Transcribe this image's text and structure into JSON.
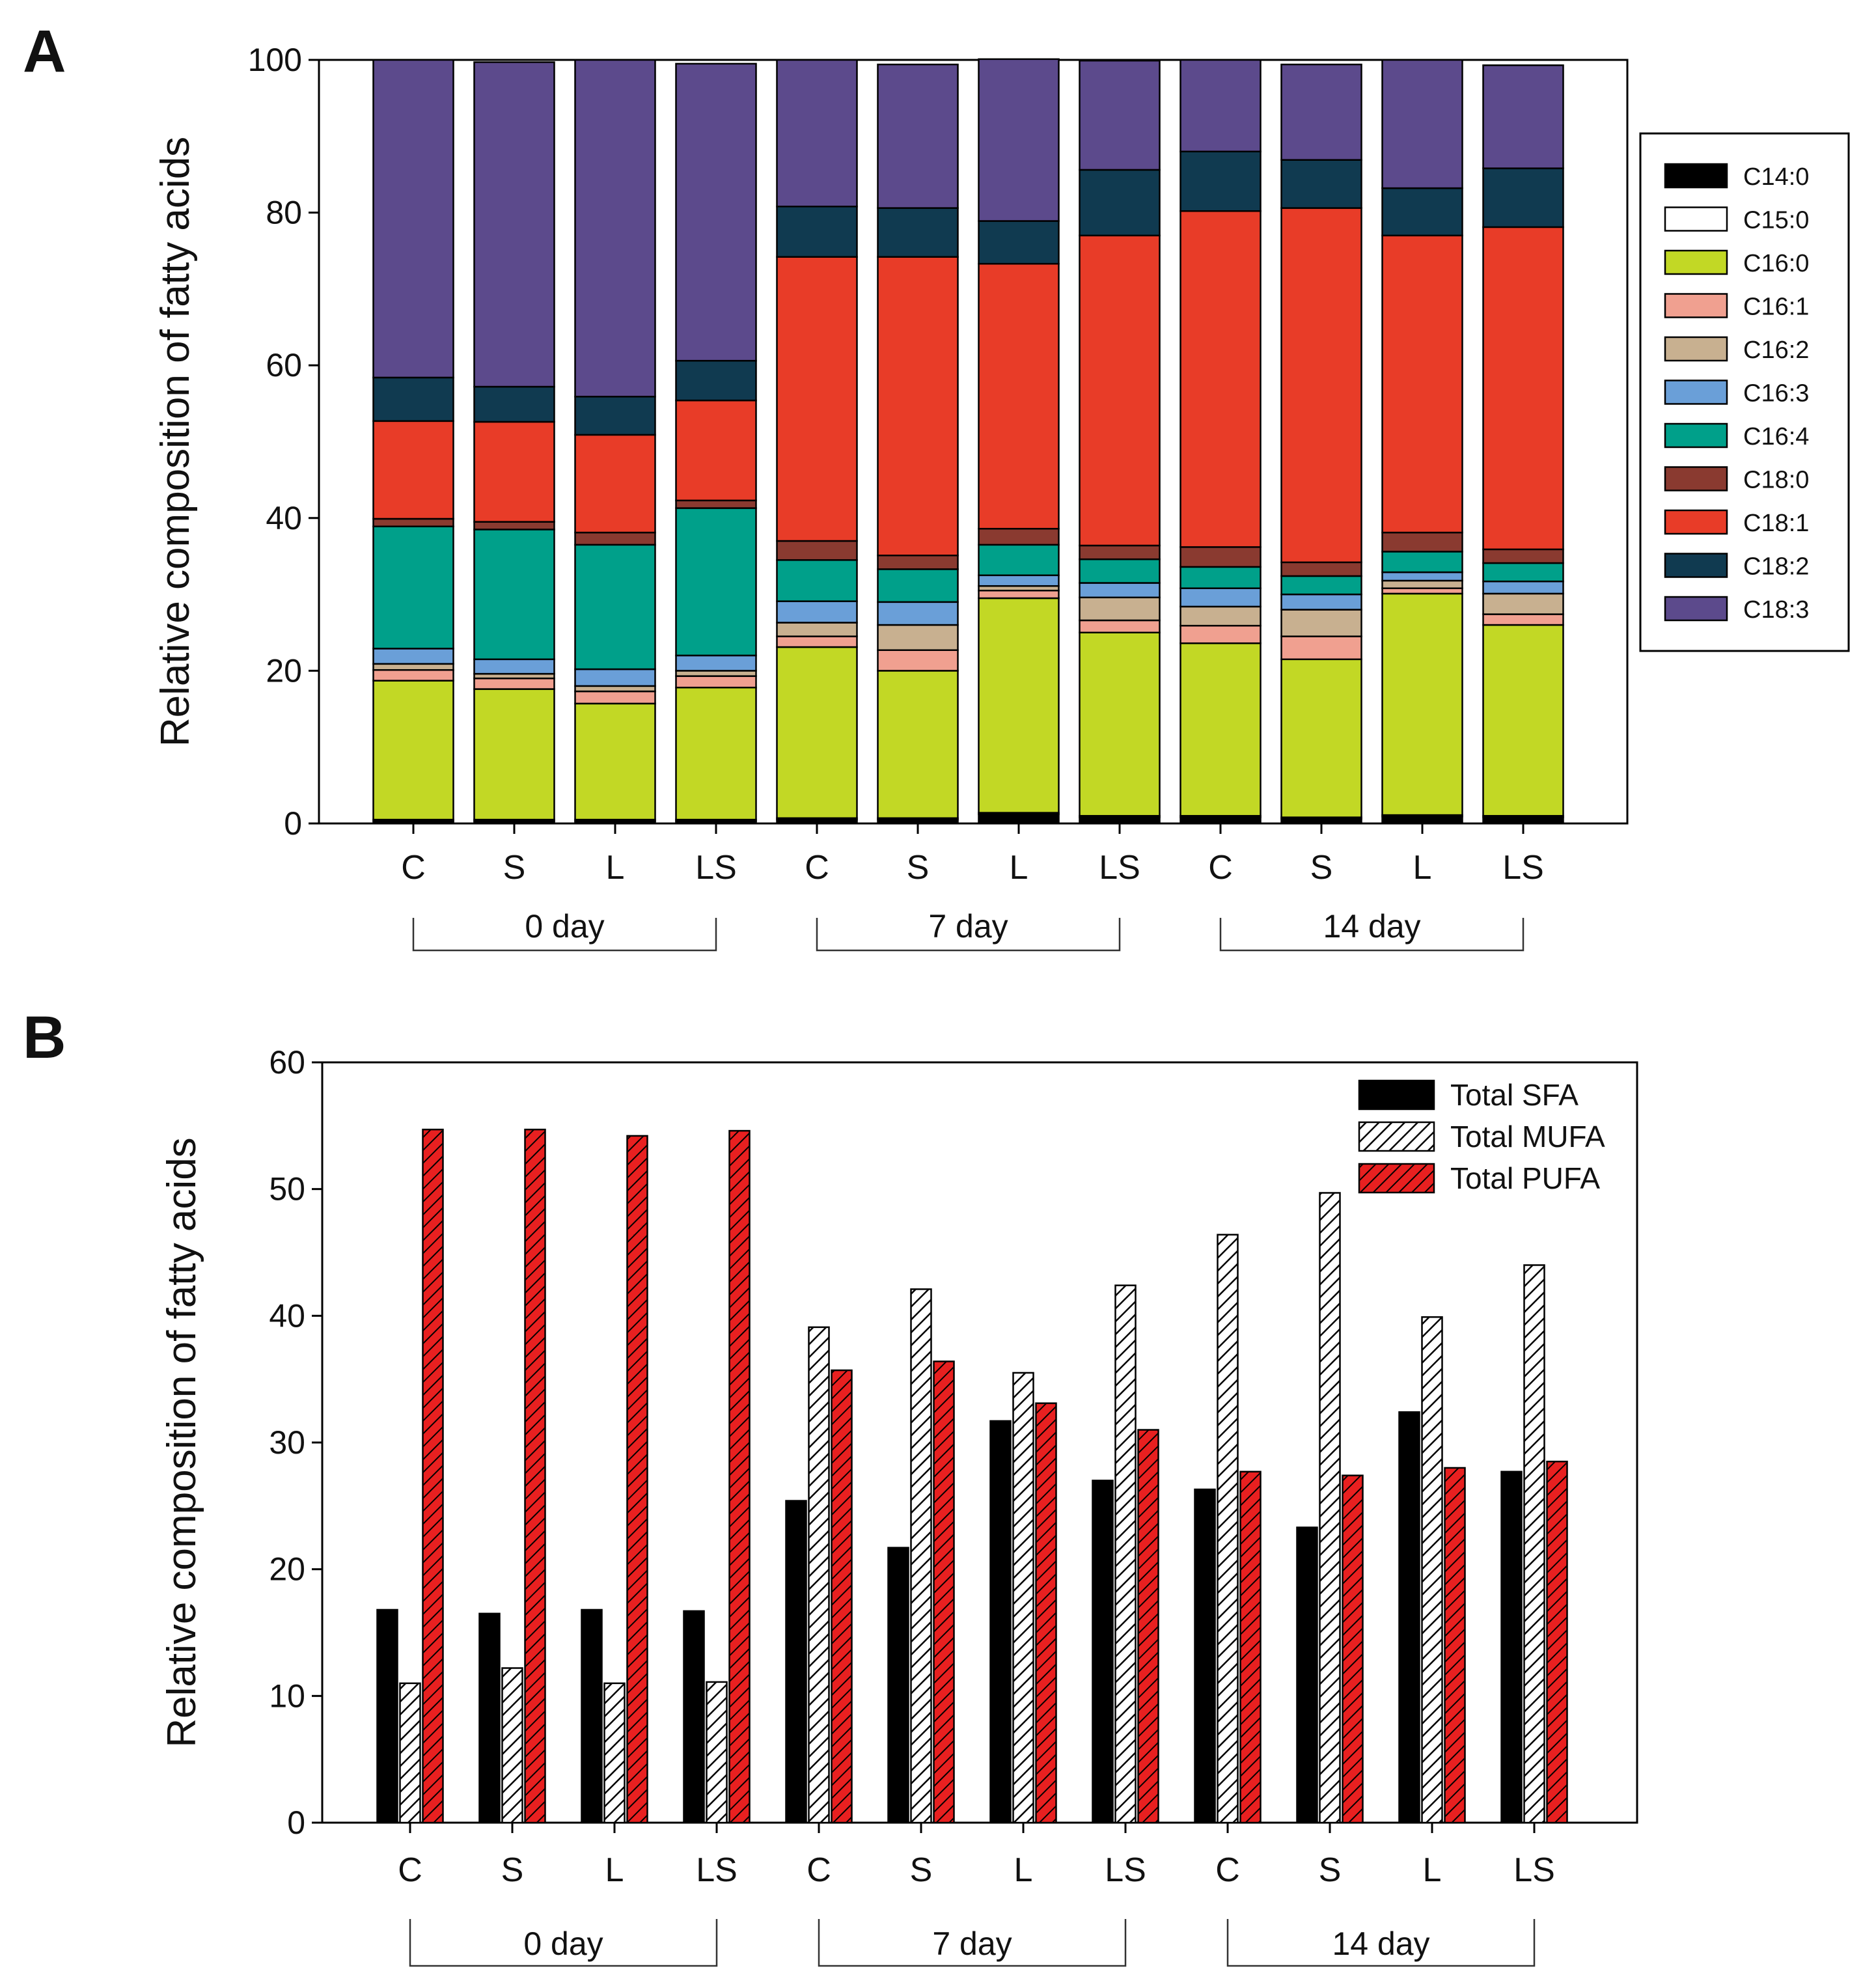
{
  "figure": {
    "panel_a_label": "A",
    "panel_b_label": "B"
  },
  "chart_data": [
    {
      "type": "stacked-bar",
      "panel": "A",
      "ylabel": "Relative composition of fatty acids",
      "ylim": [
        0,
        100
      ],
      "yticks": [
        0,
        20,
        40,
        60,
        80,
        100
      ],
      "categories": [
        "C",
        "S",
        "L",
        "LS",
        "C",
        "S",
        "L",
        "LS",
        "C",
        "S",
        "L",
        "LS"
      ],
      "groups": [
        {
          "label": "0 day",
          "start": 0,
          "end": 3
        },
        {
          "label": "7 day",
          "start": 4,
          "end": 7
        },
        {
          "label": "14 day",
          "start": 8,
          "end": 11
        }
      ],
      "legend_position": "right",
      "series": [
        {
          "name": "C14:0",
          "color": "#000000",
          "values": [
            0.3,
            0.3,
            0.3,
            0.3,
            0.5,
            0.5,
            1.2,
            0.8,
            0.8,
            0.6,
            0.9,
            0.8
          ]
        },
        {
          "name": "C15:0",
          "color": "#ffffff",
          "values": [
            0.2,
            0.2,
            0.2,
            0.2,
            0.2,
            0.2,
            0.2,
            0.2,
            0.2,
            0.2,
            0.2,
            0.2
          ]
        },
        {
          "name": "C16:0",
          "color": "#c2d825",
          "values": [
            18.2,
            17.1,
            15.2,
            17.3,
            22.4,
            19.3,
            28.1,
            24.0,
            22.6,
            20.7,
            29.0,
            25.0
          ]
        },
        {
          "name": "C16:1",
          "color": "#f0a090",
          "values": [
            1.4,
            1.4,
            1.6,
            1.5,
            1.4,
            2.7,
            1.0,
            1.6,
            2.3,
            3.0,
            0.7,
            1.4
          ]
        },
        {
          "name": "C16:2",
          "color": "#c8b090",
          "values": [
            0.8,
            0.6,
            0.7,
            0.7,
            1.8,
            3.3,
            0.6,
            3.0,
            2.5,
            3.5,
            1.0,
            2.7
          ]
        },
        {
          "name": "C16:3",
          "color": "#6a9fd8",
          "values": [
            2.0,
            1.9,
            2.2,
            2.0,
            2.8,
            3.0,
            1.4,
            1.9,
            2.4,
            2.0,
            1.1,
            1.6
          ]
        },
        {
          "name": "C16:4",
          "color": "#00a08a",
          "values": [
            16.0,
            17.0,
            16.3,
            19.3,
            5.4,
            4.3,
            4.0,
            3.1,
            2.8,
            2.4,
            2.7,
            2.4
          ]
        },
        {
          "name": "C18:0",
          "color": "#8a3a30",
          "values": [
            1.0,
            1.0,
            1.6,
            1.0,
            2.5,
            1.8,
            2.1,
            1.8,
            2.6,
            1.8,
            2.5,
            1.8
          ]
        },
        {
          "name": "C18:1",
          "color": "#e83c28",
          "values": [
            12.8,
            13.1,
            12.8,
            13.1,
            37.2,
            39.1,
            34.7,
            40.6,
            44.0,
            46.4,
            38.9,
            42.2
          ]
        },
        {
          "name": "C18:2",
          "color": "#103a50",
          "values": [
            5.7,
            4.6,
            5.0,
            5.2,
            6.6,
            6.4,
            5.6,
            8.6,
            7.8,
            6.3,
            6.2,
            7.7
          ]
        },
        {
          "name": "C18:3",
          "color": "#5c4a8c",
          "values": [
            41.6,
            42.5,
            44.1,
            38.9,
            19.2,
            18.8,
            21.2,
            14.3,
            12.0,
            12.5,
            16.8,
            13.5
          ]
        }
      ]
    },
    {
      "type": "bar",
      "panel": "B",
      "ylabel": "Relative composition of fatty acids",
      "ylim": [
        0,
        60
      ],
      "yticks": [
        0,
        10,
        20,
        30,
        40,
        50,
        60
      ],
      "categories": [
        "C",
        "S",
        "L",
        "LS",
        "C",
        "S",
        "L",
        "LS",
        "C",
        "S",
        "L",
        "LS"
      ],
      "groups": [
        {
          "label": "0 day",
          "start": 0,
          "end": 3
        },
        {
          "label": "7 day",
          "start": 4,
          "end": 7
        },
        {
          "label": "14 day",
          "start": 8,
          "end": 11
        }
      ],
      "legend_position": "top-right",
      "series": [
        {
          "name": "Total SFA",
          "fill": "solid",
          "color": "#000000",
          "values": [
            16.8,
            16.5,
            16.8,
            16.7,
            25.4,
            21.7,
            31.7,
            27.0,
            26.3,
            23.3,
            32.4,
            27.7
          ]
        },
        {
          "name": "Total MUFA",
          "fill": "hatch",
          "color": "#000000",
          "values": [
            11.0,
            12.2,
            11.0,
            11.1,
            39.1,
            42.1,
            35.5,
            42.4,
            46.4,
            49.7,
            39.9,
            44.0
          ]
        },
        {
          "name": "Total PUFA",
          "fill": "hatch",
          "color": "#e82020",
          "values": [
            54.7,
            54.7,
            54.2,
            54.6,
            35.7,
            36.4,
            33.1,
            31.0,
            27.7,
            27.4,
            28.0,
            28.5
          ]
        }
      ]
    }
  ]
}
